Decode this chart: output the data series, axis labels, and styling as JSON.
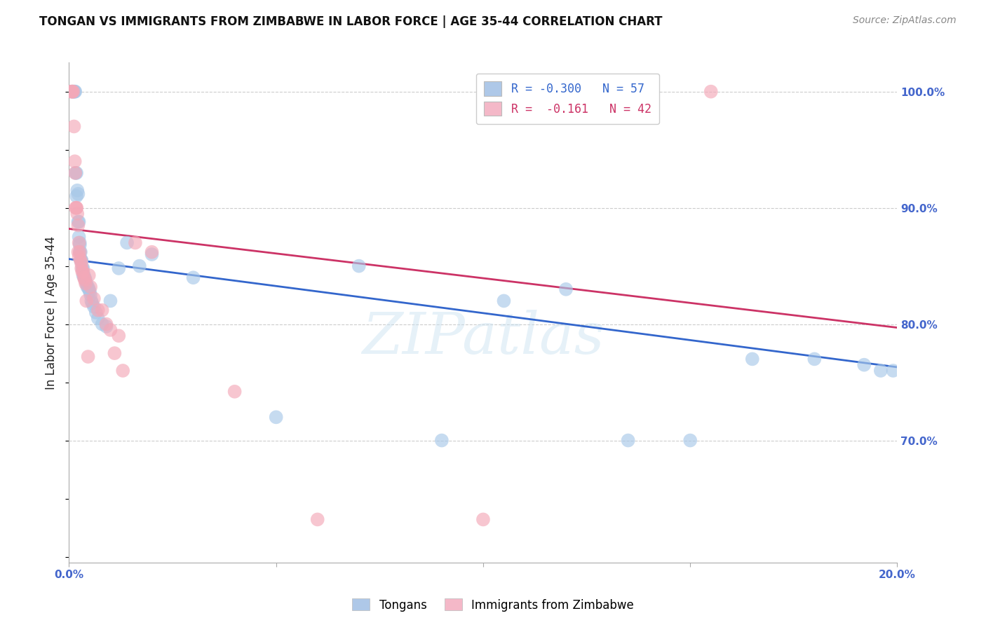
{
  "title": "TONGAN VS IMMIGRANTS FROM ZIMBABWE IN LABOR FORCE | AGE 35-44 CORRELATION CHART",
  "source": "Source: ZipAtlas.com",
  "ylabel": "In Labor Force | Age 35-44",
  "x_min": 0.0,
  "x_max": 0.2,
  "y_min": 0.595,
  "y_max": 1.025,
  "y_ticks": [
    0.7,
    0.8,
    0.9,
    1.0
  ],
  "y_tick_labels": [
    "70.0%",
    "80.0%",
    "90.0%",
    "100.0%"
  ],
  "watermark_text": "ZIPatlas",
  "blue_color": "#a8c8e8",
  "pink_color": "#f4a8b8",
  "blue_line_color": "#3366cc",
  "pink_line_color": "#cc3366",
  "grid_color": "#cccccc",
  "background_color": "#ffffff",
  "blue_scatter_x": [
    0.0008,
    0.001,
    0.0012,
    0.0014,
    0.0015,
    0.0016,
    0.0018,
    0.0018,
    0.002,
    0.0022,
    0.0022,
    0.0024,
    0.0024,
    0.0026,
    0.0026,
    0.0026,
    0.0028,
    0.0028,
    0.003,
    0.003,
    0.0032,
    0.0034,
    0.0034,
    0.0036,
    0.0038,
    0.004,
    0.0042,
    0.0044,
    0.0046,
    0.0048,
    0.005,
    0.0052,
    0.0054,
    0.0056,
    0.006,
    0.0065,
    0.007,
    0.008,
    0.009,
    0.01,
    0.012,
    0.014,
    0.017,
    0.02,
    0.03,
    0.05,
    0.07,
    0.09,
    0.105,
    0.12,
    0.135,
    0.15,
    0.165,
    0.18,
    0.192,
    0.196,
    0.199
  ],
  "blue_scatter_y": [
    1.0,
    1.0,
    1.0,
    1.0,
    1.0,
    0.93,
    0.93,
    0.91,
    0.915,
    0.912,
    0.888,
    0.888,
    0.875,
    0.87,
    0.868,
    0.862,
    0.862,
    0.855,
    0.855,
    0.855,
    0.848,
    0.848,
    0.842,
    0.842,
    0.84,
    0.838,
    0.835,
    0.832,
    0.832,
    0.83,
    0.828,
    0.825,
    0.82,
    0.818,
    0.815,
    0.81,
    0.805,
    0.8,
    0.798,
    0.82,
    0.848,
    0.87,
    0.85,
    0.86,
    0.84,
    0.72,
    0.85,
    0.7,
    0.82,
    0.83,
    0.7,
    0.7,
    0.77,
    0.77,
    0.765,
    0.76,
    0.76
  ],
  "pink_scatter_x": [
    0.0005,
    0.0007,
    0.0008,
    0.001,
    0.0012,
    0.0014,
    0.0015,
    0.0016,
    0.0018,
    0.0018,
    0.002,
    0.0022,
    0.0022,
    0.0024,
    0.0024,
    0.0026,
    0.0028,
    0.003,
    0.003,
    0.0032,
    0.0034,
    0.0036,
    0.0038,
    0.004,
    0.0042,
    0.0046,
    0.0048,
    0.0052,
    0.006,
    0.007,
    0.008,
    0.009,
    0.01,
    0.011,
    0.012,
    0.013,
    0.016,
    0.02,
    0.04,
    0.06,
    0.155,
    0.1
  ],
  "pink_scatter_y": [
    1.0,
    1.0,
    1.0,
    1.0,
    0.97,
    0.94,
    0.93,
    0.9,
    0.9,
    0.9,
    0.895,
    0.885,
    0.862,
    0.87,
    0.858,
    0.862,
    0.855,
    0.852,
    0.848,
    0.845,
    0.845,
    0.84,
    0.838,
    0.835,
    0.82,
    0.772,
    0.842,
    0.832,
    0.822,
    0.812,
    0.812,
    0.8,
    0.795,
    0.775,
    0.79,
    0.76,
    0.87,
    0.862,
    0.742,
    0.632,
    1.0,
    0.632
  ],
  "blue_line_x": [
    0.0,
    0.2
  ],
  "blue_line_y": [
    0.856,
    0.763
  ],
  "pink_line_x": [
    0.0,
    0.2
  ],
  "pink_line_y": [
    0.882,
    0.797
  ],
  "legend_blue_label": "R = -0.300   N = 57",
  "legend_pink_label": "R =  -0.161   N = 42",
  "legend_blue_color": "#aec8e8",
  "legend_pink_color": "#f4b8c8",
  "bottom_legend_blue": "Tongans",
  "bottom_legend_pink": "Immigrants from Zimbabwe",
  "title_fontsize": 12,
  "source_fontsize": 10,
  "tick_fontsize": 11,
  "ylabel_fontsize": 12
}
